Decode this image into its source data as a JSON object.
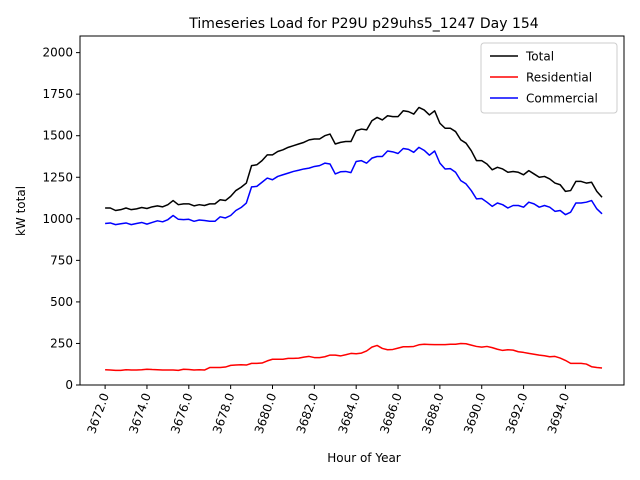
{
  "chart_data": {
    "type": "line",
    "title": "Timeseries Load for P29U p29uhs5_1247  Day 154",
    "xlabel": "Hour of Year",
    "ylabel": "kW total",
    "xlim": [
      3670.8,
      3696.8
    ],
    "ylim": [
      0,
      2100
    ],
    "x_start": 3672.0,
    "x_step": 0.25,
    "xticks": [
      3672.0,
      3674.0,
      3676.0,
      3678.0,
      3680.0,
      3682.0,
      3684.0,
      3686.0,
      3688.0,
      3690.0,
      3692.0,
      3694.0
    ],
    "xtick_labels": [
      "3672.0",
      "3674.0",
      "3676.0",
      "3678.0",
      "3680.0",
      "3682.0",
      "3684.0",
      "3686.0",
      "3688.0",
      "3690.0",
      "3692.0",
      "3694.0"
    ],
    "yticks": [
      0,
      250,
      500,
      750,
      1000,
      1250,
      1500,
      1750,
      2000
    ],
    "ytick_labels": [
      "0",
      "250",
      "500",
      "750",
      "1000",
      "1250",
      "1500",
      "1750",
      "2000"
    ],
    "legend_position": "top-right",
    "series": [
      {
        "name": "Total",
        "color": "#000000",
        "values": [
          1065,
          1065,
          1050,
          1055,
          1065,
          1055,
          1060,
          1068,
          1062,
          1072,
          1078,
          1072,
          1085,
          1110,
          1085,
          1090,
          1090,
          1078,
          1085,
          1080,
          1090,
          1090,
          1115,
          1110,
          1135,
          1170,
          1190,
          1215,
          1320,
          1325,
          1350,
          1385,
          1385,
          1405,
          1415,
          1430,
          1440,
          1450,
          1460,
          1475,
          1480,
          1480,
          1500,
          1510,
          1450,
          1460,
          1465,
          1465,
          1530,
          1540,
          1535,
          1590,
          1610,
          1595,
          1620,
          1615,
          1615,
          1650,
          1645,
          1630,
          1670,
          1655,
          1625,
          1650,
          1575,
          1545,
          1545,
          1525,
          1475,
          1455,
          1410,
          1350,
          1350,
          1330,
          1295,
          1310,
          1300,
          1280,
          1285,
          1280,
          1265,
          1290,
          1270,
          1250,
          1255,
          1240,
          1215,
          1205,
          1165,
          1170,
          1225,
          1225,
          1215,
          1220,
          1165,
          1130
        ]
      },
      {
        "name": "Residential",
        "color": "#ff0000",
        "values": [
          92,
          90,
          88,
          88,
          92,
          90,
          90,
          92,
          95,
          93,
          92,
          90,
          90,
          90,
          88,
          95,
          93,
          90,
          92,
          90,
          105,
          105,
          105,
          108,
          118,
          120,
          122,
          120,
          130,
          130,
          132,
          145,
          155,
          155,
          155,
          160,
          160,
          162,
          168,
          172,
          165,
          165,
          170,
          180,
          180,
          175,
          182,
          190,
          188,
          192,
          205,
          228,
          238,
          220,
          212,
          214,
          222,
          230,
          230,
          232,
          242,
          245,
          244,
          243,
          243,
          243,
          245,
          245,
          250,
          248,
          240,
          232,
          228,
          232,
          225,
          215,
          208,
          212,
          210,
          200,
          196,
          190,
          185,
          180,
          176,
          170,
          172,
          162,
          148,
          130,
          130,
          130,
          126,
          110,
          105,
          102
        ]
      },
      {
        "name": "Commercial",
        "color": "#0000ff",
        "values": [
          972,
          975,
          965,
          970,
          975,
          965,
          972,
          978,
          968,
          978,
          988,
          982,
          995,
          1020,
          997,
          995,
          997,
          985,
          993,
          990,
          985,
          985,
          1012,
          1005,
          1020,
          1050,
          1068,
          1095,
          1192,
          1195,
          1220,
          1245,
          1235,
          1255,
          1265,
          1275,
          1285,
          1292,
          1300,
          1305,
          1315,
          1320,
          1335,
          1330,
          1270,
          1283,
          1285,
          1278,
          1345,
          1350,
          1335,
          1365,
          1375,
          1375,
          1408,
          1403,
          1393,
          1423,
          1418,
          1400,
          1430,
          1412,
          1383,
          1408,
          1335,
          1300,
          1302,
          1280,
          1230,
          1210,
          1170,
          1120,
          1122,
          1100,
          1075,
          1095,
          1085,
          1065,
          1080,
          1080,
          1070,
          1100,
          1090,
          1070,
          1080,
          1070,
          1045,
          1050,
          1025,
          1040,
          1095,
          1095,
          1100,
          1110,
          1060,
          1030
        ]
      }
    ]
  }
}
